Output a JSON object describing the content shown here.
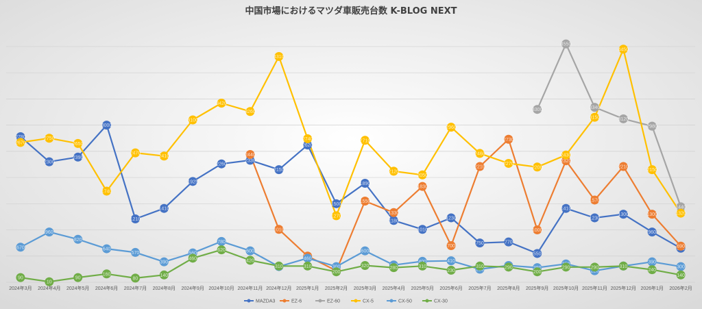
{
  "chart_data": {
    "type": "line",
    "title": "中国市場におけるマツダ車販売台数 K-BLOG NEXT",
    "xlabel": "",
    "ylabel": "",
    "ylim": [
      0,
      4800
    ],
    "grid": true,
    "legend_position": "bottom",
    "categories": [
      "2024年3月",
      "2024年4月",
      "2024年5月",
      "2024年6月",
      "2024年7月",
      "2024年8月",
      "2024年9月",
      "2024年10月",
      "2024年11月",
      "2024年12月",
      "2025年1月",
      "2025年2月",
      "2025年3月",
      "2025年4月",
      "2025年5月",
      "2025年6月",
      "2025年7月",
      "2025年8月",
      "2025年9月",
      "2025年10月",
      "2025年11月",
      "2025年12月",
      "2026年1月",
      "2026年2月"
    ],
    "series": [
      {
        "name": "MAZDA3",
        "color": "#4472C4",
        "values": [
          2780,
          2300,
          2390,
          3000,
          1210,
          1410,
          1925,
          2260,
          2330,
          2150,
          2620,
          1500,
          1890,
          1180,
          1010,
          1230,
          750,
          770,
          550,
          1410,
          1230,
          1300,
          960,
          650
        ]
      },
      {
        "name": "EZ-6",
        "color": "#ED7D31",
        "values": [
          null,
          null,
          null,
          null,
          null,
          null,
          null,
          null,
          2440,
          1010,
          500,
          220,
          1550,
          1330,
          1830,
          700,
          2210,
          2730,
          1000,
          2320,
          1570,
          2210,
          1300,
          690
        ]
      },
      {
        "name": "EZ-60",
        "color": "#A5A5A5",
        "values": [
          null,
          null,
          null,
          null,
          null,
          null,
          null,
          null,
          null,
          null,
          null,
          null,
          null,
          null,
          null,
          null,
          null,
          null,
          3300,
          4550,
          3340,
          3120,
          2980,
          1440
        ]
      },
      {
        "name": "CX-5",
        "color": "#FFC000",
        "values": [
          2670,
          2750,
          2650,
          1740,
          2470,
          2410,
          3100,
          3420,
          3260,
          4310,
          2740,
          1270,
          2710,
          2120,
          2050,
          2960,
          2460,
          2270,
          2200,
          2430,
          3150,
          4450,
          2150,
          1320
        ]
      },
      {
        "name": "CX-50",
        "color": "#5B9BD5",
        "values": [
          670,
          960,
          820,
          640,
          570,
          390,
          560,
          780,
          600,
          300,
          460,
          300,
          600,
          330,
          400,
          410,
          250,
          320,
          280,
          350,
          220,
          310,
          390,
          300
        ]
      },
      {
        "name": "CX-30",
        "color": "#70AD47",
        "values": [
          90,
          10,
          90,
          160,
          80,
          140,
          460,
          620,
          420,
          310,
          310,
          200,
          320,
          280,
          310,
          230,
          310,
          290,
          200,
          290,
          290,
          310,
          240,
          140
        ]
      }
    ]
  }
}
